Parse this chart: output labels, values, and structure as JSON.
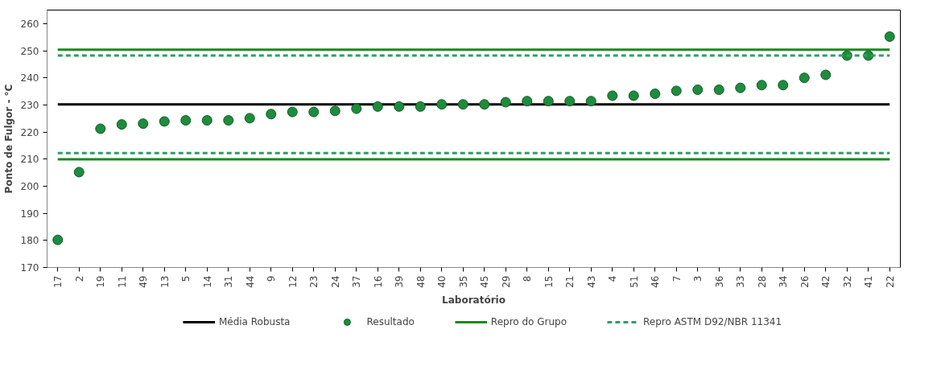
{
  "chart_data": {
    "type": "scatter",
    "xlabel": "Laboratório",
    "ylabel": "Ponto de Fulgor - °C",
    "categories": [
      "17",
      "2",
      "19",
      "11",
      "49",
      "13",
      "5",
      "14",
      "31",
      "44",
      "9",
      "12",
      "23",
      "24",
      "37",
      "16",
      "39",
      "48",
      "40",
      "35",
      "45",
      "29",
      "8",
      "15",
      "21",
      "43",
      "4",
      "51",
      "46",
      "7",
      "3",
      "36",
      "33",
      "28",
      "34",
      "26",
      "42",
      "32",
      "41",
      "22"
    ],
    "series": [
      {
        "name": "Média Robusta",
        "type": "line",
        "color": "#000000",
        "line_style": "solid",
        "values": [
          230.2,
          230.2,
          230.2,
          230.2,
          230.2,
          230.2,
          230.2,
          230.2,
          230.2,
          230.2,
          230.2,
          230.2,
          230.2,
          230.2,
          230.2,
          230.2,
          230.2,
          230.2,
          230.2,
          230.2,
          230.2,
          230.2,
          230.2,
          230.2,
          230.2,
          230.2,
          230.2,
          230.2,
          230.2,
          230.2,
          230.2,
          230.2,
          230.2,
          230.2,
          230.2,
          230.2,
          230.2,
          230.2,
          230.2,
          230.2
        ]
      },
      {
        "name": "Resultado",
        "type": "scatter",
        "color": "#1e8c3c",
        "marker": "circle",
        "values": [
          180.2,
          205.2,
          221.2,
          222.8,
          223.1,
          223.9,
          224.3,
          224.3,
          224.3,
          225.1,
          226.6,
          227.4,
          227.4,
          227.8,
          228.6,
          229.4,
          229.4,
          229.4,
          230.2,
          230.2,
          230.2,
          231.0,
          231.4,
          231.4,
          231.4,
          231.4,
          233.4,
          233.4,
          234.1,
          235.2,
          235.6,
          235.6,
          236.3,
          237.3,
          237.3,
          240.0,
          241.1,
          248.2,
          248.2,
          255.2
        ]
      },
      {
        "name": "Repro do Grupo",
        "type": "line",
        "color": "#1a8a1a",
        "line_style": "solid",
        "values": [
          250.4,
          250.4,
          250.4,
          250.4,
          250.4,
          250.4,
          250.4,
          250.4,
          250.4,
          250.4,
          250.4,
          250.4,
          250.4,
          250.4,
          250.4,
          250.4,
          250.4,
          250.4,
          250.4,
          250.4,
          250.4,
          250.4,
          250.4,
          250.4,
          250.4,
          250.4,
          250.4,
          250.4,
          250.4,
          250.4,
          250.4,
          250.4,
          250.4,
          250.4,
          250.4,
          250.4,
          250.4,
          250.4,
          250.4,
          250.4
        ]
      },
      {
        "type": "line",
        "color": "#1a8a1a",
        "line_style": "solid",
        "values": [
          209.9,
          209.9,
          209.9,
          209.9,
          209.9,
          209.9,
          209.9,
          209.9,
          209.9,
          209.9,
          209.9,
          209.9,
          209.9,
          209.9,
          209.9,
          209.9,
          209.9,
          209.9,
          209.9,
          209.9,
          209.9,
          209.9,
          209.9,
          209.9,
          209.9,
          209.9,
          209.9,
          209.9,
          209.9,
          209.9,
          209.9,
          209.9,
          209.9,
          209.9,
          209.9,
          209.9,
          209.9,
          209.9,
          209.9,
          209.9
        ]
      },
      {
        "name": "Repro ASTM D92/NBR 11341",
        "type": "line",
        "color": "#2e9e6a",
        "line_style": "dashed",
        "values": [
          248.2,
          248.2,
          248.2,
          248.2,
          248.2,
          248.2,
          248.2,
          248.2,
          248.2,
          248.2,
          248.2,
          248.2,
          248.2,
          248.2,
          248.2,
          248.2,
          248.2,
          248.2,
          248.2,
          248.2,
          248.2,
          248.2,
          248.2,
          248.2,
          248.2,
          248.2,
          248.2,
          248.2,
          248.2,
          248.2,
          248.2,
          248.2,
          248.2,
          248.2,
          248.2,
          248.2,
          248.2,
          248.2,
          248.2,
          248.2
        ]
      },
      {
        "type": "line",
        "color": "#2e9e6a",
        "line_style": "dashed",
        "values": [
          212.2,
          212.2,
          212.2,
          212.2,
          212.2,
          212.2,
          212.2,
          212.2,
          212.2,
          212.2,
          212.2,
          212.2,
          212.2,
          212.2,
          212.2,
          212.2,
          212.2,
          212.2,
          212.2,
          212.2,
          212.2,
          212.2,
          212.2,
          212.2,
          212.2,
          212.2,
          212.2,
          212.2,
          212.2,
          212.2,
          212.2,
          212.2,
          212.2,
          212.2,
          212.2,
          212.2,
          212.2,
          212.2,
          212.2,
          212.2
        ]
      }
    ],
    "ylim": [
      170,
      265
    ],
    "yticks": [
      170,
      180,
      190,
      200,
      210,
      220,
      230,
      240,
      250,
      260
    ],
    "grid": false,
    "legend": "bottom"
  }
}
